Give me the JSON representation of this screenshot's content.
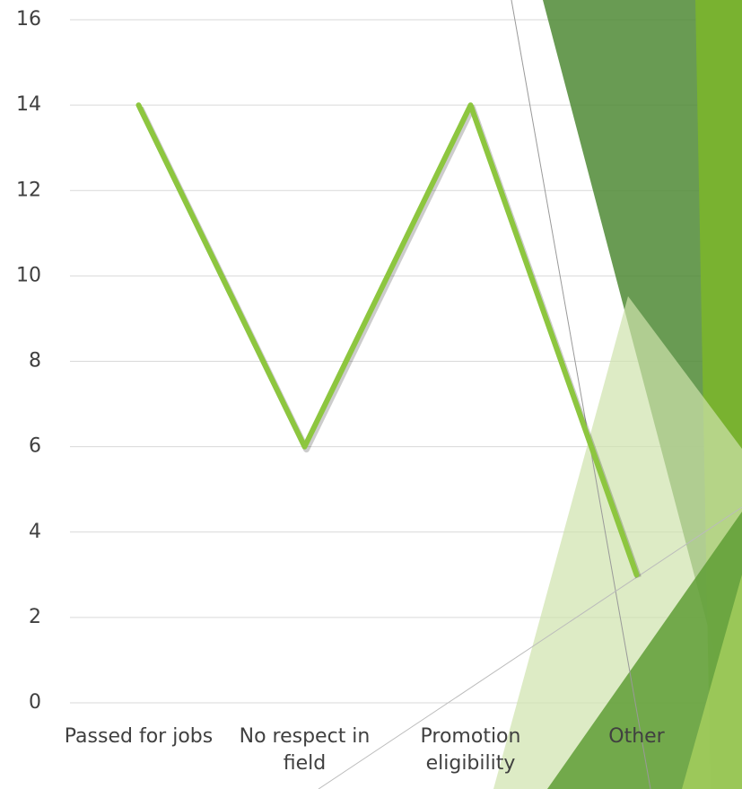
{
  "chart_data": {
    "type": "line",
    "categories": [
      "Passed for jobs",
      "No respect in field",
      "Promotion eligibility",
      "Other"
    ],
    "values": [
      14,
      6,
      14,
      3
    ],
    "color": "#8dc63f",
    "ylim": [
      0,
      16
    ],
    "yticks": [
      0,
      2,
      4,
      6,
      8,
      10,
      12,
      14,
      16
    ],
    "grid": true
  }
}
